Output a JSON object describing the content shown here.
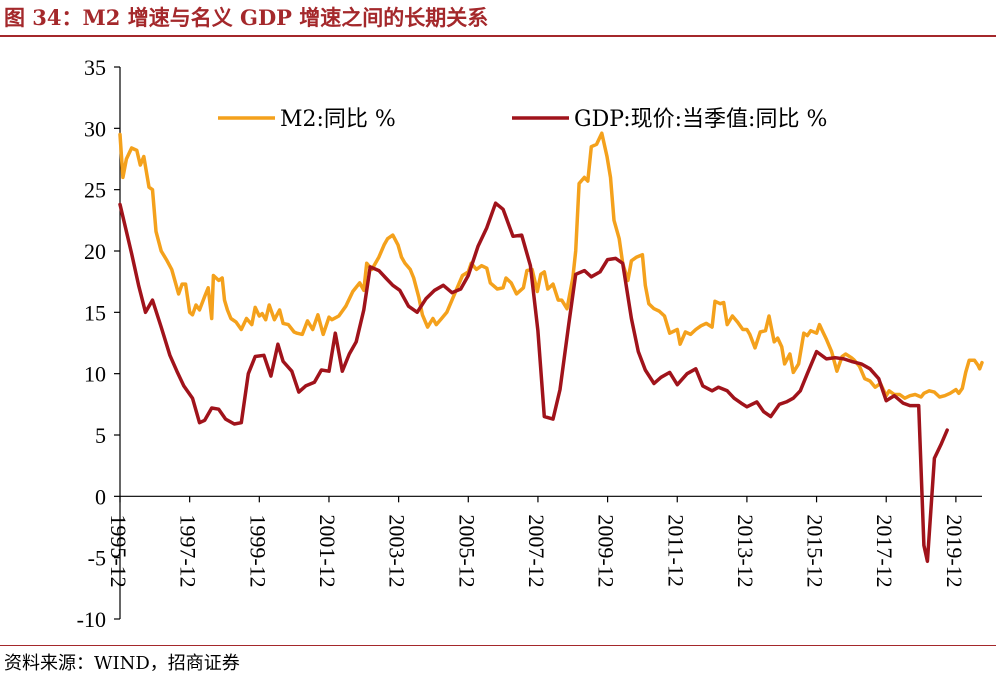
{
  "title": "图 34：M2 增速与名义 GDP 增速之间的长期关系",
  "source": "资料来源：WIND，招商证券",
  "chart_data": {
    "type": "line",
    "title": "图 34：M2 增速与名义 GDP 增速之间的长期关系",
    "xlabel": "",
    "ylabel": "",
    "ylim": [
      -10,
      35
    ],
    "yticks": [
      35,
      30,
      25,
      20,
      15,
      10,
      5,
      0,
      -5,
      -10
    ],
    "xlim": [
      1995.917,
      2020.667
    ],
    "xtick_labels": [
      "1995-12",
      "1997-12",
      "1999-12",
      "2001-12",
      "2003-12",
      "2005-12",
      "2007-12",
      "2009-12",
      "2011-12",
      "2013-12",
      "2015-12",
      "2017-12",
      "2019-12"
    ],
    "xtick_values": [
      1995.917,
      1997.917,
      1999.917,
      2001.917,
      2003.917,
      2005.917,
      2007.917,
      2009.917,
      2011.917,
      2013.917,
      2015.917,
      2017.917,
      2019.917
    ],
    "grid": false,
    "legend": "top",
    "series": [
      {
        "name": "M2:同比 %",
        "color": "#f4a11c",
        "points": [
          [
            1995.917,
            29.5
          ],
          [
            1996.0,
            26.0
          ],
          [
            1996.1,
            27.5
          ],
          [
            1996.25,
            28.4
          ],
          [
            1996.4,
            28.2
          ],
          [
            1996.5,
            27.0
          ],
          [
            1996.6,
            27.7
          ],
          [
            1996.75,
            25.2
          ],
          [
            1996.85,
            25.0
          ],
          [
            1996.95,
            21.6
          ],
          [
            1997.1,
            20.0
          ],
          [
            1997.25,
            19.3
          ],
          [
            1997.4,
            18.5
          ],
          [
            1997.6,
            16.5
          ],
          [
            1997.7,
            17.3
          ],
          [
            1997.8,
            17.3
          ],
          [
            1997.917,
            15.0
          ],
          [
            1998.0,
            14.8
          ],
          [
            1998.1,
            15.6
          ],
          [
            1998.2,
            15.2
          ],
          [
            1998.35,
            16.3
          ],
          [
            1998.45,
            17.0
          ],
          [
            1998.55,
            14.5
          ],
          [
            1998.6,
            18.0
          ],
          [
            1998.75,
            17.6
          ],
          [
            1998.85,
            17.8
          ],
          [
            1998.917,
            16.0
          ],
          [
            1999.0,
            15.2
          ],
          [
            1999.1,
            14.5
          ],
          [
            1999.25,
            14.2
          ],
          [
            1999.4,
            13.6
          ],
          [
            1999.55,
            14.5
          ],
          [
            1999.7,
            14.0
          ],
          [
            1999.8,
            15.4
          ],
          [
            1999.917,
            14.7
          ],
          [
            2000.0,
            14.9
          ],
          [
            2000.1,
            14.4
          ],
          [
            2000.2,
            15.6
          ],
          [
            2000.35,
            14.4
          ],
          [
            2000.5,
            15.2
          ],
          [
            2000.6,
            14.1
          ],
          [
            2000.75,
            14.0
          ],
          [
            2000.917,
            13.4
          ],
          [
            2001.0,
            13.3
          ],
          [
            2001.15,
            13.2
          ],
          [
            2001.3,
            14.3
          ],
          [
            2001.45,
            13.6
          ],
          [
            2001.6,
            14.8
          ],
          [
            2001.75,
            13.2
          ],
          [
            2001.917,
            14.6
          ],
          [
            2002.0,
            14.4
          ],
          [
            2002.2,
            14.7
          ],
          [
            2002.4,
            15.5
          ],
          [
            2002.6,
            16.7
          ],
          [
            2002.8,
            17.4
          ],
          [
            2002.917,
            16.8
          ],
          [
            2003.0,
            19.0
          ],
          [
            2003.15,
            18.5
          ],
          [
            2003.35,
            19.5
          ],
          [
            2003.5,
            20.5
          ],
          [
            2003.6,
            21.0
          ],
          [
            2003.75,
            21.3
          ],
          [
            2003.9,
            20.5
          ],
          [
            2004.0,
            19.5
          ],
          [
            2004.1,
            19.0
          ],
          [
            2004.25,
            18.5
          ],
          [
            2004.35,
            17.8
          ],
          [
            2004.5,
            16.2
          ],
          [
            2004.6,
            14.8
          ],
          [
            2004.75,
            13.8
          ],
          [
            2004.9,
            14.5
          ],
          [
            2005.0,
            14.0
          ],
          [
            2005.15,
            14.5
          ],
          [
            2005.3,
            15.0
          ],
          [
            2005.45,
            16.0
          ],
          [
            2005.6,
            17.0
          ],
          [
            2005.75,
            18.0
          ],
          [
            2005.917,
            18.3
          ],
          [
            2006.0,
            19.0
          ],
          [
            2006.15,
            18.5
          ],
          [
            2006.3,
            18.8
          ],
          [
            2006.45,
            18.6
          ],
          [
            2006.55,
            17.4
          ],
          [
            2006.75,
            16.9
          ],
          [
            2006.917,
            17.0
          ],
          [
            2007.0,
            17.8
          ],
          [
            2007.15,
            17.4
          ],
          [
            2007.3,
            16.5
          ],
          [
            2007.5,
            17.0
          ],
          [
            2007.6,
            18.4
          ],
          [
            2007.75,
            18.5
          ],
          [
            2007.9,
            16.7
          ],
          [
            2008.0,
            18.1
          ],
          [
            2008.1,
            18.3
          ],
          [
            2008.2,
            16.9
          ],
          [
            2008.35,
            17.3
          ],
          [
            2008.5,
            16.0
          ],
          [
            2008.6,
            16.0
          ],
          [
            2008.75,
            15.3
          ],
          [
            2008.917,
            17.8
          ],
          [
            2009.0,
            20.0
          ],
          [
            2009.1,
            25.5
          ],
          [
            2009.25,
            26.0
          ],
          [
            2009.35,
            25.7
          ],
          [
            2009.45,
            28.5
          ],
          [
            2009.6,
            28.7
          ],
          [
            2009.75,
            29.6
          ],
          [
            2009.9,
            27.7
          ],
          [
            2010.0,
            26.0
          ],
          [
            2010.1,
            22.5
          ],
          [
            2010.25,
            21.0
          ],
          [
            2010.35,
            19.0
          ],
          [
            2010.5,
            17.6
          ],
          [
            2010.6,
            19.2
          ],
          [
            2010.75,
            19.5
          ],
          [
            2010.917,
            19.7
          ],
          [
            2011.0,
            17.2
          ],
          [
            2011.1,
            15.7
          ],
          [
            2011.25,
            15.3
          ],
          [
            2011.4,
            15.1
          ],
          [
            2011.55,
            14.7
          ],
          [
            2011.7,
            13.3
          ],
          [
            2011.917,
            13.6
          ],
          [
            2012.0,
            12.4
          ],
          [
            2012.15,
            13.4
          ],
          [
            2012.3,
            13.2
          ],
          [
            2012.45,
            13.6
          ],
          [
            2012.6,
            13.9
          ],
          [
            2012.75,
            14.1
          ],
          [
            2012.917,
            13.8
          ],
          [
            2013.0,
            15.9
          ],
          [
            2013.15,
            15.7
          ],
          [
            2013.25,
            15.8
          ],
          [
            2013.35,
            14.0
          ],
          [
            2013.5,
            14.7
          ],
          [
            2013.65,
            14.2
          ],
          [
            2013.8,
            13.6
          ],
          [
            2013.917,
            13.6
          ],
          [
            2014.0,
            13.2
          ],
          [
            2014.15,
            12.1
          ],
          [
            2014.3,
            13.4
          ],
          [
            2014.45,
            13.5
          ],
          [
            2014.55,
            14.7
          ],
          [
            2014.7,
            12.6
          ],
          [
            2014.8,
            12.9
          ],
          [
            2014.917,
            12.2
          ],
          [
            2015.0,
            10.8
          ],
          [
            2015.15,
            11.6
          ],
          [
            2015.25,
            10.1
          ],
          [
            2015.4,
            10.8
          ],
          [
            2015.55,
            13.3
          ],
          [
            2015.65,
            13.1
          ],
          [
            2015.75,
            13.5
          ],
          [
            2015.917,
            13.3
          ],
          [
            2016.0,
            14.0
          ],
          [
            2016.1,
            13.4
          ],
          [
            2016.2,
            12.8
          ],
          [
            2016.35,
            11.8
          ],
          [
            2016.5,
            10.2
          ],
          [
            2016.65,
            11.4
          ],
          [
            2016.75,
            11.6
          ],
          [
            2016.917,
            11.3
          ],
          [
            2017.0,
            11.1
          ],
          [
            2017.15,
            10.6
          ],
          [
            2017.3,
            9.6
          ],
          [
            2017.45,
            9.4
          ],
          [
            2017.6,
            8.9
          ],
          [
            2017.75,
            9.2
          ],
          [
            2017.917,
            8.2
          ],
          [
            2018.0,
            8.6
          ],
          [
            2018.15,
            8.3
          ],
          [
            2018.3,
            8.3
          ],
          [
            2018.45,
            8.0
          ],
          [
            2018.6,
            8.2
          ],
          [
            2018.75,
            8.3
          ],
          [
            2018.917,
            8.1
          ],
          [
            2019.0,
            8.4
          ],
          [
            2019.15,
            8.6
          ],
          [
            2019.3,
            8.5
          ],
          [
            2019.45,
            8.1
          ],
          [
            2019.6,
            8.2
          ],
          [
            2019.75,
            8.4
          ],
          [
            2019.917,
            8.7
          ],
          [
            2020.0,
            8.4
          ],
          [
            2020.1,
            8.8
          ],
          [
            2020.2,
            10.1
          ],
          [
            2020.3,
            11.1
          ],
          [
            2020.45,
            11.1
          ],
          [
            2020.55,
            10.7
          ],
          [
            2020.6,
            10.4
          ],
          [
            2020.667,
            10.9
          ]
        ]
      },
      {
        "name": "GDP:现价:当季值:同比 %",
        "color": "#a0131b",
        "points": [
          [
            1995.917,
            23.8
          ],
          [
            1996.25,
            19.8
          ],
          [
            1996.45,
            17.2
          ],
          [
            1996.65,
            15.0
          ],
          [
            1996.85,
            16.0
          ],
          [
            1997.1,
            13.8
          ],
          [
            1997.35,
            11.5
          ],
          [
            1997.55,
            10.2
          ],
          [
            1997.75,
            9.0
          ],
          [
            1998.0,
            8.0
          ],
          [
            1998.2,
            6.0
          ],
          [
            1998.35,
            6.2
          ],
          [
            1998.55,
            7.2
          ],
          [
            1998.75,
            7.1
          ],
          [
            1998.95,
            6.3
          ],
          [
            1999.2,
            5.9
          ],
          [
            1999.4,
            6.0
          ],
          [
            1999.6,
            10.0
          ],
          [
            1999.8,
            11.4
          ],
          [
            2000.05,
            11.5
          ],
          [
            2000.25,
            9.8
          ],
          [
            2000.45,
            12.4
          ],
          [
            2000.6,
            11.0
          ],
          [
            2000.85,
            10.2
          ],
          [
            2001.05,
            8.5
          ],
          [
            2001.25,
            9.0
          ],
          [
            2001.5,
            9.3
          ],
          [
            2001.7,
            10.3
          ],
          [
            2001.917,
            10.2
          ],
          [
            2002.1,
            13.3
          ],
          [
            2002.3,
            10.2
          ],
          [
            2002.5,
            11.6
          ],
          [
            2002.7,
            12.6
          ],
          [
            2002.917,
            15.2
          ],
          [
            2003.1,
            18.7
          ],
          [
            2003.35,
            18.4
          ],
          [
            2003.55,
            17.8
          ],
          [
            2003.75,
            17.2
          ],
          [
            2003.95,
            16.8
          ],
          [
            2004.2,
            15.5
          ],
          [
            2004.45,
            15.0
          ],
          [
            2004.7,
            16.1
          ],
          [
            2004.95,
            16.8
          ],
          [
            2005.2,
            17.2
          ],
          [
            2005.45,
            16.6
          ],
          [
            2005.7,
            16.9
          ],
          [
            2005.917,
            18.0
          ],
          [
            2006.2,
            20.4
          ],
          [
            2006.45,
            21.9
          ],
          [
            2006.7,
            23.9
          ],
          [
            2006.917,
            23.4
          ],
          [
            2007.2,
            21.2
          ],
          [
            2007.45,
            21.3
          ],
          [
            2007.7,
            18.8
          ],
          [
            2007.917,
            13.5
          ],
          [
            2008.1,
            6.5
          ],
          [
            2008.35,
            6.3
          ],
          [
            2008.55,
            8.7
          ],
          [
            2008.8,
            14.0
          ],
          [
            2009.0,
            18.1
          ],
          [
            2009.25,
            18.4
          ],
          [
            2009.45,
            17.9
          ],
          [
            2009.7,
            18.3
          ],
          [
            2009.917,
            19.3
          ],
          [
            2010.15,
            19.4
          ],
          [
            2010.35,
            19.0
          ],
          [
            2010.6,
            14.5
          ],
          [
            2010.8,
            11.8
          ],
          [
            2011.0,
            10.3
          ],
          [
            2011.25,
            9.2
          ],
          [
            2011.45,
            9.7
          ],
          [
            2011.7,
            10.1
          ],
          [
            2011.917,
            9.1
          ],
          [
            2012.2,
            10.0
          ],
          [
            2012.45,
            10.4
          ],
          [
            2012.65,
            9.0
          ],
          [
            2012.917,
            8.6
          ],
          [
            2013.1,
            8.9
          ],
          [
            2013.35,
            8.6
          ],
          [
            2013.55,
            8.0
          ],
          [
            2013.75,
            7.6
          ],
          [
            2013.917,
            7.3
          ],
          [
            2014.2,
            7.7
          ],
          [
            2014.4,
            6.9
          ],
          [
            2014.6,
            6.5
          ],
          [
            2014.85,
            7.5
          ],
          [
            2015.05,
            7.7
          ],
          [
            2015.25,
            8.0
          ],
          [
            2015.45,
            8.6
          ],
          [
            2015.65,
            10.0
          ],
          [
            2015.917,
            11.8
          ],
          [
            2016.2,
            11.2
          ],
          [
            2016.45,
            11.3
          ],
          [
            2016.7,
            11.2
          ],
          [
            2016.917,
            11.0
          ],
          [
            2017.2,
            10.8
          ],
          [
            2017.45,
            10.4
          ],
          [
            2017.7,
            9.6
          ],
          [
            2017.917,
            7.8
          ],
          [
            2018.15,
            8.2
          ],
          [
            2018.4,
            7.6
          ],
          [
            2018.6,
            7.4
          ],
          [
            2018.85,
            7.4
          ],
          [
            2019.0,
            -4.0
          ],
          [
            2019.1,
            -5.3
          ],
          [
            2019.3,
            3.1
          ],
          [
            2019.5,
            4.3
          ],
          [
            2019.667,
            5.4
          ]
        ]
      }
    ]
  }
}
